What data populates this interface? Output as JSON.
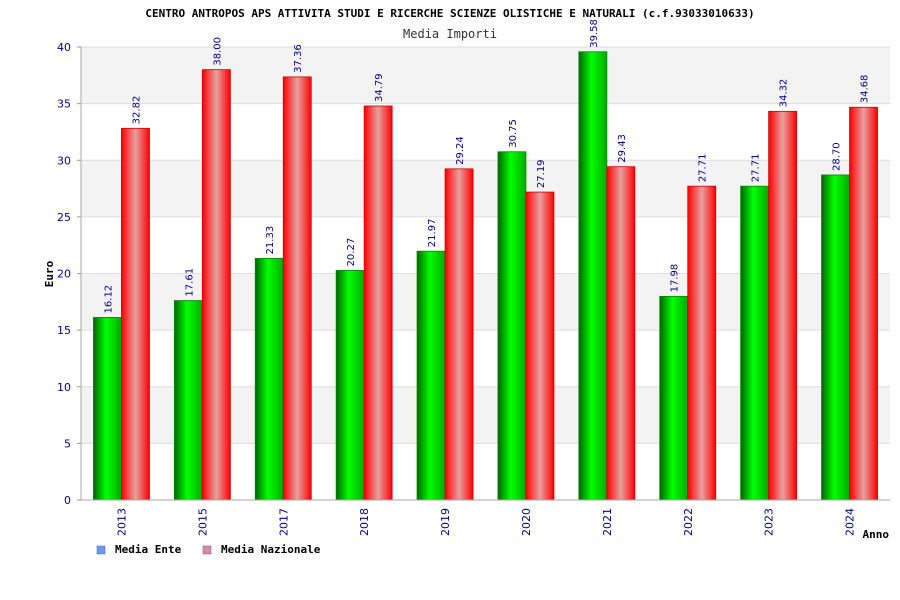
{
  "chart_data": {
    "type": "bar",
    "title": "CENTRO ANTROPOS APS ATTIVITA STUDI E RICERCHE SCIENZE OLISTICHE E NATURALI (c.f.93033010633)",
    "subtitle": "Media Importi",
    "xlabel": "Anno",
    "ylabel": "Euro",
    "ylim": [
      0,
      40
    ],
    "yticks": [
      0,
      5,
      10,
      15,
      20,
      25,
      30,
      35,
      40
    ],
    "categories": [
      "2013",
      "2015",
      "2017",
      "2018",
      "2019",
      "2020",
      "2021",
      "2022",
      "2023",
      "2024"
    ],
    "series": [
      {
        "name": "Media Ente",
        "values": [
          16.12,
          17.61,
          21.33,
          20.27,
          21.97,
          30.75,
          39.58,
          17.98,
          27.71,
          28.7
        ],
        "labels": [
          "16.12",
          "17.61",
          "21.33",
          "20.27",
          "21.97",
          "30.75",
          "39.58",
          "17.98",
          "27.71",
          "28.70"
        ],
        "color": "#00cc00"
      },
      {
        "name": "Media Nazionale",
        "values": [
          32.82,
          38.0,
          37.36,
          34.79,
          29.24,
          27.19,
          29.43,
          27.71,
          34.32,
          34.68
        ],
        "labels": [
          "32.82",
          "38.00",
          "37.36",
          "34.79",
          "29.24",
          "27.19",
          "29.43",
          "27.71",
          "34.32",
          "34.68"
        ],
        "color": "#ff0000"
      }
    ],
    "legend": [
      {
        "label": "Media Ente",
        "color": "#6699ff"
      },
      {
        "label": "Media Nazionale",
        "color": "#dd88aa"
      }
    ],
    "legend_position": "bottom-left",
    "grid": true
  }
}
